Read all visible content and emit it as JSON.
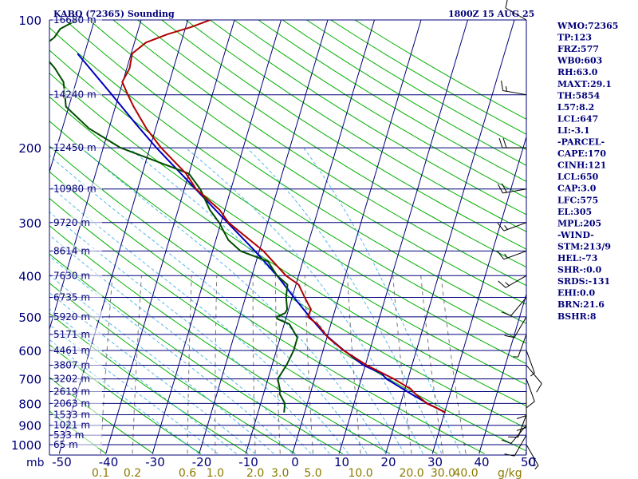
{
  "header": {
    "station": "KABQ (72365) Sounding",
    "time": "1800Z 15 AUG 25"
  },
  "indices": [
    "WMO:72365",
    "TP:123",
    "FRZ:577",
    "WB0:603",
    "RH:63.0",
    "MAXT:29.1",
    "TH:5854",
    "L57:8.2",
    "LCL:647",
    "LI:-3.1",
    "-PARCEL-",
    "CAPE:170",
    "CINH:121",
    "LCL:650",
    "CAP:3.0",
    "LFC:575",
    "EL:305",
    "MPL:205",
    "-WIND-",
    "STM:213/9",
    "HEL:-73",
    "SHR-:0.0",
    "SRDS:-131",
    "EHI:0.0",
    "BRN:21.6",
    "BSHR:8"
  ],
  "colors": {
    "temperature": "#b00000",
    "dewpoint": "#004d00",
    "parcel": "#0000c0",
    "isobar": "#00007a",
    "isotherm": "#00007a",
    "dry_adiabat": "#00b000",
    "moist_adiabat": "#55b8e8",
    "mixing_ratio": "#777777",
    "text": "#00007a",
    "mr_label": "#8a7a00"
  },
  "chart_data": {
    "type": "skew-t log-p",
    "title": "KABQ (72365) Sounding",
    "pressure_unit": "mb",
    "temperature_unit": "C",
    "mixing_ratio_unit": "g/kg",
    "ylim": [
      1000,
      100
    ],
    "xlim": [
      -50,
      50
    ],
    "isobars": [
      100,
      200,
      300,
      400,
      500,
      600,
      700,
      800,
      900,
      1000
    ],
    "pressure_tick_labels": [
      "100",
      "200",
      "300",
      "400",
      "500",
      "600",
      "700",
      "800",
      "900",
      "1000"
    ],
    "temperature_ticks": [
      -50,
      -40,
      -30,
      -20,
      -10,
      0,
      10,
      20,
      30,
      40,
      50
    ],
    "temperature_tick_labels": [
      "-50",
      "-40",
      "-30",
      "-20",
      "-10",
      "0",
      "10",
      "20",
      "30",
      "40",
      "50"
    ],
    "mixing_ratio_lines": [
      0.1,
      0.2,
      0.6,
      1.0,
      2.0,
      3.0,
      5.0,
      10.0,
      20.0,
      30.0,
      40.0
    ],
    "mixing_ratio_labels": [
      "0.1",
      "0.2",
      "0.6",
      "1.0",
      "2.0",
      "3.0",
      "5.0",
      "10.0",
      "20.0",
      "30.0",
      "40.0"
    ],
    "heights": [
      {
        "p": 100,
        "label": "16680 m"
      },
      {
        "p": 150,
        "label": "14240 m"
      },
      {
        "p": 200,
        "label": "12450 m"
      },
      {
        "p": 250,
        "label": "10980 m"
      },
      {
        "p": 300,
        "label": "9720 m"
      },
      {
        "p": 350,
        "label": "8614 m"
      },
      {
        "p": 400,
        "label": "7630 m"
      },
      {
        "p": 450,
        "label": "6735 m"
      },
      {
        "p": 500,
        "label": "5920 m"
      },
      {
        "p": 550,
        "label": "5171 m"
      },
      {
        "p": 600,
        "label": "4461 m"
      },
      {
        "p": 650,
        "label": "3807 m"
      },
      {
        "p": 700,
        "label": "3202 m"
      },
      {
        "p": 750,
        "label": "2619 m"
      },
      {
        "p": 800,
        "label": "2063 m"
      },
      {
        "p": 850,
        "label": "1533 m"
      },
      {
        "p": 900,
        "label": "1021 m"
      },
      {
        "p": 950,
        "label": "533 m"
      },
      {
        "p": 1000,
        "label": "65 m"
      }
    ],
    "temperature_profile": [
      [
        840,
        30.2
      ],
      [
        820,
        28.0
      ],
      [
        800,
        25.6
      ],
      [
        780,
        24.2
      ],
      [
        760,
        22.6
      ],
      [
        740,
        21.3
      ],
      [
        700,
        17.0
      ],
      [
        650,
        10.3
      ],
      [
        600,
        4.4
      ],
      [
        560,
        0.3
      ],
      [
        520,
        -2.9
      ],
      [
        500,
        -5.4
      ],
      [
        480,
        -5.2
      ],
      [
        450,
        -7.3
      ],
      [
        420,
        -9.4
      ],
      [
        400,
        -12.7
      ],
      [
        350,
        -19.1
      ],
      [
        300,
        -28.4
      ],
      [
        280,
        -31.1
      ],
      [
        250,
        -37.5
      ],
      [
        230,
        -40.6
      ],
      [
        200,
        -47.6
      ],
      [
        180,
        -52.0
      ],
      [
        160,
        -56.1
      ],
      [
        150,
        -58.1
      ],
      [
        140,
        -60.1
      ],
      [
        130,
        -59.4
      ],
      [
        120,
        -59.8
      ],
      [
        113,
        -57.5
      ],
      [
        108,
        -53.4
      ],
      [
        104,
        -48.9
      ],
      [
        100,
        -45.2
      ]
    ],
    "dewpoint_profile": [
      [
        840,
        -4.4
      ],
      [
        800,
        -4.8
      ],
      [
        760,
        -6.5
      ],
      [
        740,
        -6.8
      ],
      [
        700,
        -7.9
      ],
      [
        650,
        -6.9
      ],
      [
        600,
        -6.3
      ],
      [
        560,
        -6.3
      ],
      [
        520,
        -8.9
      ],
      [
        505,
        -11.9
      ],
      [
        500,
        -12.0
      ],
      [
        490,
        -10.5
      ],
      [
        480,
        -10.3
      ],
      [
        450,
        -11.3
      ],
      [
        420,
        -11.8
      ],
      [
        400,
        -14.6
      ],
      [
        370,
        -17.5
      ],
      [
        350,
        -24.0
      ],
      [
        330,
        -27.3
      ],
      [
        300,
        -30.4
      ],
      [
        280,
        -33.2
      ],
      [
        250,
        -36.6
      ],
      [
        230,
        -40.0
      ],
      [
        200,
        -56.3
      ],
      [
        180,
        -64.3
      ],
      [
        160,
        -70.6
      ],
      [
        150,
        -71.6
      ],
      [
        140,
        -72.7
      ],
      [
        130,
        -75.4
      ],
      [
        120,
        -79.0
      ],
      [
        115,
        -79.3
      ],
      [
        110,
        -77.5
      ],
      [
        105,
        -76.8
      ],
      [
        100,
        -73.8
      ]
    ],
    "parcel_profile": [
      [
        840,
        30.2
      ],
      [
        800,
        25.8
      ],
      [
        760,
        21.7
      ],
      [
        700,
        15.4
      ],
      [
        680,
        14.0
      ],
      [
        650,
        9.6
      ],
      [
        600,
        4.5
      ],
      [
        550,
        -0.6
      ],
      [
        500,
        -5.0
      ],
      [
        450,
        -9.6
      ],
      [
        400,
        -14.6
      ],
      [
        350,
        -20.9
      ],
      [
        300,
        -28.6
      ],
      [
        250,
        -37.6
      ],
      [
        200,
        -48.6
      ],
      [
        175,
        -54.7
      ],
      [
        150,
        -61.5
      ],
      [
        120,
        -71.5
      ]
    ],
    "wind_profile": [
      {
        "p": 1000,
        "dir": 150,
        "spd": 5
      },
      {
        "p": 950,
        "dir": 210,
        "spd": 10
      },
      {
        "p": 900,
        "dir": 220,
        "spd": 10
      },
      {
        "p": 850,
        "dir": 200,
        "spd": 10
      },
      {
        "p": 800,
        "dir": 180,
        "spd": 10
      },
      {
        "p": 750,
        "dir": 180,
        "spd": 10
      },
      {
        "p": 700,
        "dir": 160,
        "spd": 10
      },
      {
        "p": 650,
        "dir": 140,
        "spd": 10
      },
      {
        "p": 600,
        "dir": 160,
        "spd": 5
      },
      {
        "p": 550,
        "dir": 200,
        "spd": 5
      },
      {
        "p": 500,
        "dir": 210,
        "spd": 10
      },
      {
        "p": 450,
        "dir": 220,
        "spd": 10
      },
      {
        "p": 400,
        "dir": 240,
        "spd": 15
      },
      {
        "p": 350,
        "dir": 250,
        "spd": 15
      },
      {
        "p": 300,
        "dir": 250,
        "spd": 15
      },
      {
        "p": 250,
        "dir": 260,
        "spd": 20
      },
      {
        "p": 200,
        "dir": 270,
        "spd": 20
      },
      {
        "p": 150,
        "dir": 280,
        "spd": 15
      },
      {
        "p": 100,
        "dir": 300,
        "spd": 10
      }
    ]
  }
}
